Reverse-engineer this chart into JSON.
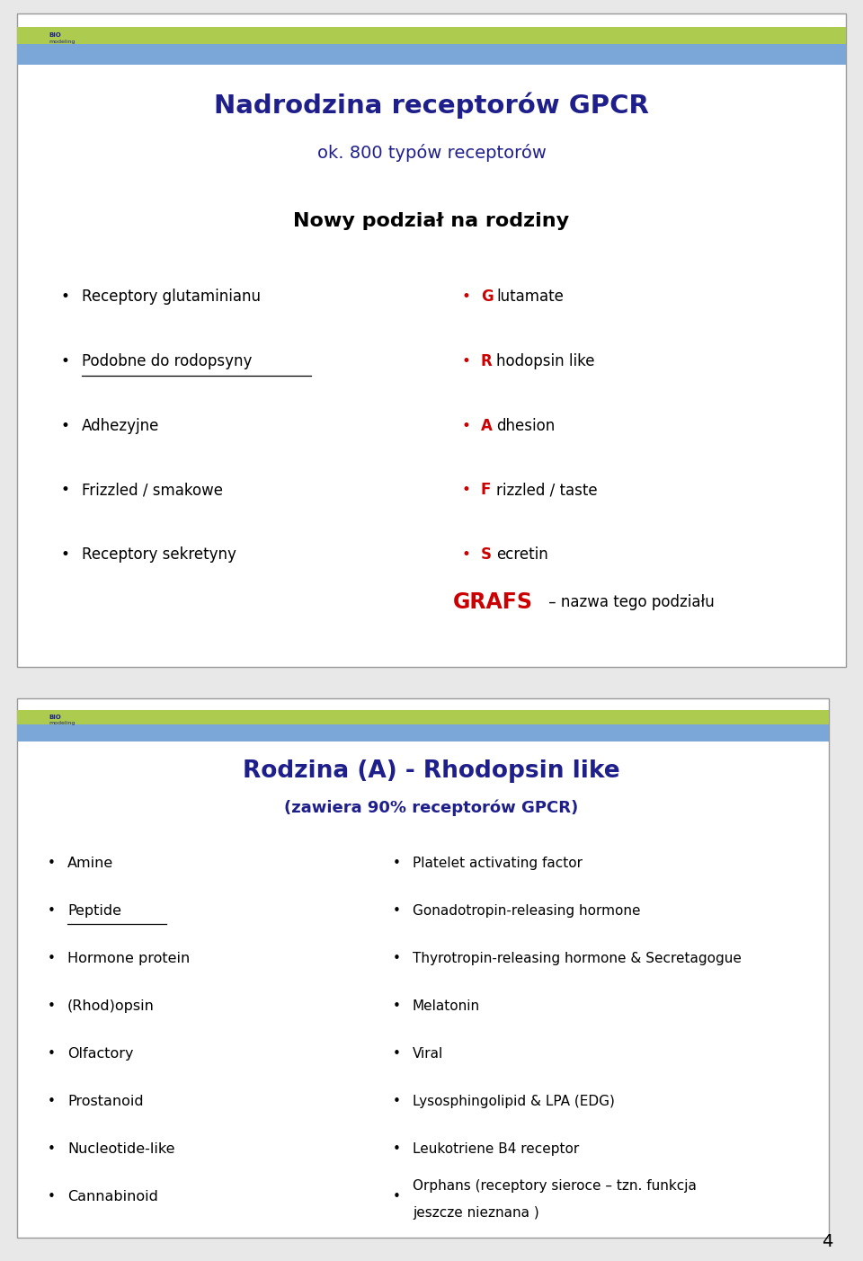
{
  "slide1_title": "Nadrodzina receptorów GPCR",
  "slide1_subtitle": "ok. 800 typów receptorów",
  "slide1_section": "Nowy podział na rodziny",
  "slide1_left_items": [
    "Receptory glutaminianu",
    "Podobne do rodopsyny",
    "Adhezyjne",
    "Frizzled / smakowe",
    "Receptory sekretyny"
  ],
  "slide1_right_items": [
    "Glutamate",
    "Rhodopsin like",
    "Adhesion",
    "Frizzled / taste",
    "Secretin"
  ],
  "slide1_right_first_letters": [
    "G",
    "R",
    "A",
    "F",
    "S"
  ],
  "grafs_text": "GRAFS",
  "grafs_suffix": " – nazwa tego podziału",
  "slide2_title": "Rodzina (A) - Rhodopsin like",
  "slide2_subtitle": "(zawiera 90% receptorów GPCR)",
  "slide2_left_items": [
    "Amine",
    "Peptide",
    "Hormone protein",
    "(Rhod)opsin",
    "Olfactory",
    "Prostanoid",
    "Nucleotide-like",
    "Cannabinoid"
  ],
  "slide2_left_underline": [
    false,
    true,
    false,
    false,
    false,
    false,
    false,
    false
  ],
  "slide2_right_items": [
    "Platelet activating factor",
    "Gonadotropin-releasing hormone",
    "Thyrotropin-releasing hormone & Secretagogue",
    "Melatonin",
    "Viral",
    "Lysosphingolipid & LPA (EDG)",
    "Leukotriene B4 receptor",
    "Orphans (receptory sieroce – tzn. funkcja\njeszcze nieznana )"
  ],
  "title_color": "#1F1F8C",
  "subtitle_color": "#1F1F8C",
  "section_color": "#000000",
  "bullet_color_left": "#000000",
  "bullet_color_right": "#CC0000",
  "red_letter_color": "#CC0000",
  "grafs_color": "#CC0000",
  "slide2_title_color": "#1F1F8C",
  "slide2_subtitle_color": "#1F1F8C",
  "header_bar_color_green": "#ADCC4F",
  "header_bar_color_blue": "#7BA7D8",
  "page_number": "4",
  "slide1_underline": [
    false,
    true,
    false,
    false,
    false
  ]
}
